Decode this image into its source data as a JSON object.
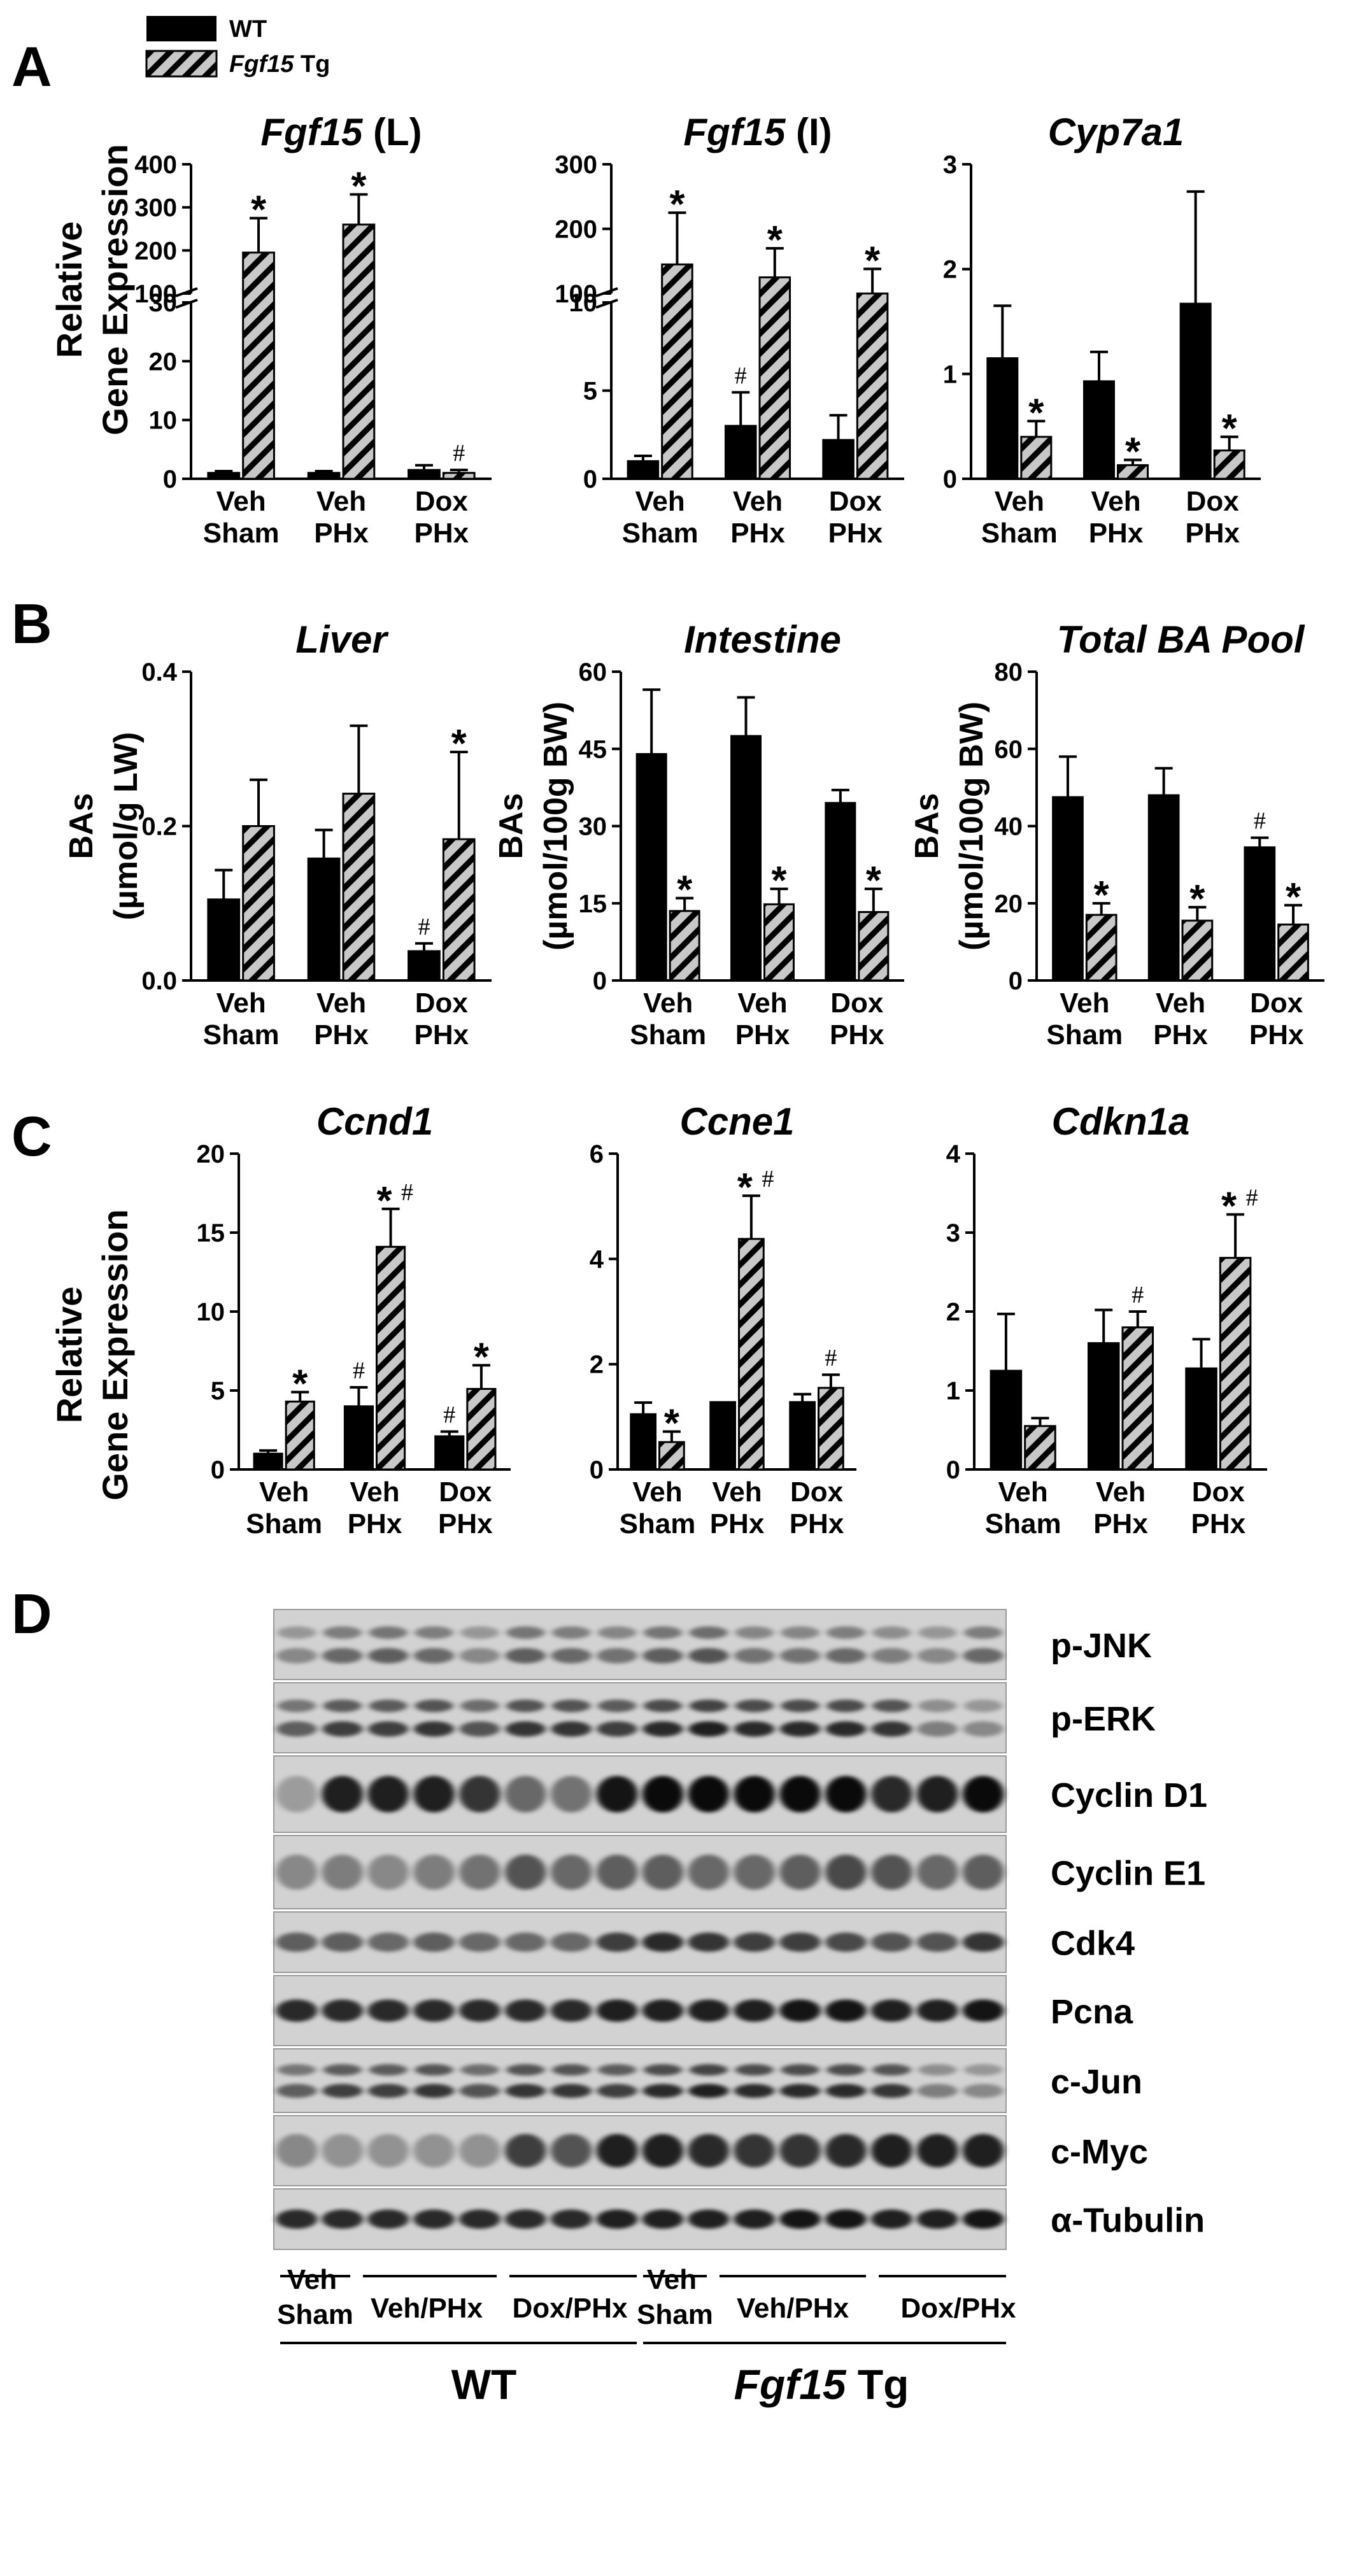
{
  "legend": {
    "wt_label": "WT",
    "tg_label_italic": "Fgf15",
    "tg_label_rest": " Tg"
  },
  "panels": {
    "A": "A",
    "B": "B",
    "C": "C",
    "D": "D"
  },
  "group_labels": {
    "veh_sham": [
      "Veh",
      "Sham"
    ],
    "veh_phx": [
      "Veh",
      "PHx"
    ],
    "dox_phx": [
      "Dox",
      "PHx"
    ]
  },
  "ylabel_gene": [
    "Relative",
    "Gene Expression"
  ],
  "colors": {
    "wt_fill": "#000000",
    "tg_fill": "hatch-grey",
    "hatch_stripe": "#000000",
    "hatch_bg": "#c8c8c8"
  },
  "chart_data": [
    {
      "id": "fgf15L",
      "type": "bar",
      "panel": "A",
      "broken_axis": true,
      "title_italic": "Fgf15",
      "title_rest": " (L)",
      "categories": [
        "Veh Sham",
        "Veh PHx",
        "Dox PHx"
      ],
      "series": [
        {
          "name": "WT",
          "values": [
            1,
            1,
            1.5
          ],
          "errors": [
            0.3,
            0.3,
            0.8
          ]
        },
        {
          "name": "Fgf15 Tg",
          "values": [
            195,
            260,
            1.0
          ],
          "errors": [
            80,
            70,
            0.5
          ]
        }
      ],
      "annotations_wt": [
        "",
        "",
        ""
      ],
      "annotations_tg": [
        "*",
        "*",
        "#"
      ],
      "ylim_low": [
        0,
        30
      ],
      "ylim_high": [
        100,
        400
      ],
      "yticks_low": [
        "0",
        "10",
        "20",
        "30"
      ],
      "yticks_high": [
        "100",
        "200",
        "300",
        "400"
      ]
    },
    {
      "id": "fgf15I",
      "type": "bar",
      "panel": "A",
      "broken_axis": true,
      "title_italic": "Fgf15",
      "title_rest": " (I)",
      "categories": [
        "Veh Sham",
        "Veh PHx",
        "Dox PHx"
      ],
      "series": [
        {
          "name": "WT",
          "values": [
            1,
            3,
            2.2
          ],
          "errors": [
            0.3,
            1.9,
            1.4
          ]
        },
        {
          "name": "Fgf15 Tg",
          "values": [
            145,
            125,
            100
          ],
          "errors": [
            80,
            45,
            38
          ]
        }
      ],
      "annotations_wt": [
        "",
        "#",
        ""
      ],
      "annotations_tg": [
        "*",
        "*",
        "*"
      ],
      "ylim_low": [
        0,
        10
      ],
      "ylim_high": [
        100,
        300
      ],
      "yticks_low": [
        "0",
        "5",
        "10"
      ],
      "yticks_high": [
        "100",
        "200",
        "300"
      ]
    },
    {
      "id": "cyp7a1",
      "type": "bar",
      "panel": "A",
      "title_italic": "Cyp7a1",
      "title_rest": "",
      "categories": [
        "Veh Sham",
        "Veh PHx",
        "Dox PHx"
      ],
      "series": [
        {
          "name": "WT",
          "values": [
            1.15,
            0.93,
            1.67
          ],
          "errors": [
            0.5,
            0.28,
            1.07
          ]
        },
        {
          "name": "Fgf15 Tg",
          "values": [
            0.4,
            0.13,
            0.27
          ],
          "errors": [
            0.15,
            0.05,
            0.13
          ]
        }
      ],
      "annotations_wt": [
        "",
        "",
        ""
      ],
      "annotations_tg": [
        "*",
        "*",
        "*"
      ],
      "ylim": [
        0,
        3
      ],
      "yticks": [
        "0",
        "1",
        "2",
        "3"
      ]
    },
    {
      "id": "liver",
      "type": "bar",
      "panel": "B",
      "title_italic": "Liver",
      "title_rest": "",
      "ylabel": [
        "BAs",
        "(µmol/g LW)"
      ],
      "categories": [
        "Veh Sham",
        "Veh PHx",
        "Dox PHx"
      ],
      "series": [
        {
          "name": "WT",
          "values": [
            0.105,
            0.158,
            0.038
          ],
          "errors": [
            0.038,
            0.037,
            0.01
          ]
        },
        {
          "name": "Fgf15 Tg",
          "values": [
            0.2,
            0.242,
            0.183
          ],
          "errors": [
            0.06,
            0.088,
            0.113
          ]
        }
      ],
      "annotations_wt": [
        "",
        "",
        "#"
      ],
      "annotations_tg": [
        "",
        "",
        "*"
      ],
      "ylim": [
        0,
        0.4
      ],
      "yticks": [
        "0.0",
        "0.2",
        "0.4"
      ]
    },
    {
      "id": "intestine",
      "type": "bar",
      "panel": "B",
      "title_italic": "Intestine",
      "title_rest": "",
      "ylabel": [
        "BAs",
        "(µmol/100g BW)"
      ],
      "categories": [
        "Veh Sham",
        "Veh PHx",
        "Dox PHx"
      ],
      "series": [
        {
          "name": "WT",
          "values": [
            44,
            47.5,
            34.5
          ],
          "errors": [
            12.5,
            7.5,
            2.5
          ]
        },
        {
          "name": "Fgf15 Tg",
          "values": [
            13.5,
            14.8,
            13.3
          ],
          "errors": [
            2.5,
            3,
            4.5
          ]
        }
      ],
      "annotations_wt": [
        "",
        "",
        ""
      ],
      "annotations_tg": [
        "*",
        "*",
        "*"
      ],
      "ylim": [
        0,
        60
      ],
      "yticks": [
        "0",
        "15",
        "30",
        "45",
        "60"
      ]
    },
    {
      "id": "total",
      "type": "bar",
      "panel": "B",
      "title_italic": "Total BA Pool",
      "title_rest": "",
      "ylabel": [
        "BAs",
        "(µmol/100g BW)"
      ],
      "categories": [
        "Veh Sham",
        "Veh PHx",
        "Dox PHx"
      ],
      "series": [
        {
          "name": "WT",
          "values": [
            47.5,
            48,
            34.5
          ],
          "errors": [
            10.5,
            7,
            2.5
          ]
        },
        {
          "name": "Fgf15 Tg",
          "values": [
            17,
            15.5,
            14.5
          ],
          "errors": [
            3,
            3.5,
            5
          ]
        }
      ],
      "annotations_wt": [
        "",
        "",
        "#"
      ],
      "annotations_tg": [
        "*",
        "*",
        "*"
      ],
      "ylim": [
        0,
        80
      ],
      "yticks": [
        "0",
        "20",
        "40",
        "60",
        "80"
      ]
    },
    {
      "id": "ccnd1",
      "type": "bar",
      "panel": "C",
      "title_italic": "Ccnd1",
      "title_rest": "",
      "categories": [
        "Veh Sham",
        "Veh PHx",
        "Dox PHx"
      ],
      "series": [
        {
          "name": "WT",
          "values": [
            1,
            4,
            2.1
          ],
          "errors": [
            0.2,
            1.2,
            0.3
          ]
        },
        {
          "name": "Fgf15 Tg",
          "values": [
            4.3,
            14.1,
            5.1
          ],
          "errors": [
            0.6,
            2.4,
            1.5
          ]
        }
      ],
      "annotations_wt": [
        "",
        "#",
        "#"
      ],
      "annotations_tg": [
        "*",
        "*#",
        "*"
      ],
      "ylim": [
        0,
        20
      ],
      "yticks": [
        "0",
        "5",
        "10",
        "15",
        "20"
      ]
    },
    {
      "id": "ccne1",
      "type": "bar",
      "panel": "C",
      "title_italic": "Ccne1",
      "title_rest": "",
      "categories": [
        "Veh Sham",
        "Veh PHx",
        "Dox PHx"
      ],
      "series": [
        {
          "name": "WT",
          "values": [
            1.05,
            1.28,
            1.28
          ],
          "errors": [
            0.22,
            0.0,
            0.15
          ]
        },
        {
          "name": "Fgf15 Tg",
          "values": [
            0.52,
            4.38,
            1.55
          ],
          "errors": [
            0.2,
            0.82,
            0.25
          ]
        }
      ],
      "annotations_wt": [
        "",
        "",
        ""
      ],
      "annotations_tg": [
        "*",
        "*#",
        "#"
      ],
      "ylim": [
        0,
        6
      ],
      "yticks": [
        "0",
        "2",
        "4",
        "6"
      ]
    },
    {
      "id": "cdkn1a",
      "type": "bar",
      "panel": "C",
      "title_italic": "Cdkn1a",
      "title_rest": "",
      "categories": [
        "Veh Sham",
        "Veh PHx",
        "Dox PHx"
      ],
      "series": [
        {
          "name": "WT",
          "values": [
            1.25,
            1.6,
            1.28
          ],
          "errors": [
            0.72,
            0.42,
            0.37
          ]
        },
        {
          "name": "Fgf15 Tg",
          "values": [
            0.55,
            1.8,
            2.68
          ],
          "errors": [
            0.1,
            0.2,
            0.55
          ]
        }
      ],
      "annotations_wt": [
        "",
        "",
        ""
      ],
      "annotations_tg": [
        "",
        "#",
        "*#"
      ],
      "ylim": [
        0,
        4
      ],
      "yticks": [
        "0",
        "1",
        "2",
        "3",
        "4"
      ]
    }
  ],
  "western": {
    "blots": [
      {
        "label": "p-JNK",
        "pattern": "doublet-faint"
      },
      {
        "label": "p-ERK",
        "pattern": "doublet-strong"
      },
      {
        "label": "Cyclin D1",
        "pattern": "cyclinD1"
      },
      {
        "label": "Cyclin E1",
        "pattern": "smear"
      },
      {
        "label": "Cdk4",
        "pattern": "single-medium"
      },
      {
        "label": "Pcna",
        "pattern": "single-strong"
      },
      {
        "label": "c-Jun",
        "pattern": "doublet-strong"
      },
      {
        "label": "c-Myc",
        "pattern": "cmyc"
      },
      {
        "label": "α-Tubulin",
        "pattern": "single-strong"
      }
    ],
    "lane_groups": [
      {
        "line1": "Veh",
        "line2": "Sham"
      },
      {
        "line1": "Veh/PHx",
        "line2": ""
      },
      {
        "line1": "Dox/PHx",
        "line2": ""
      },
      {
        "line1": "Veh",
        "line2": "Sham"
      },
      {
        "line1": "Veh/PHx",
        "line2": ""
      },
      {
        "line1": "Dox/PHx",
        "line2": ""
      }
    ],
    "genotype_wt": "WT",
    "genotype_tg_italic": "Fgf15",
    "genotype_tg_rest": " Tg"
  }
}
